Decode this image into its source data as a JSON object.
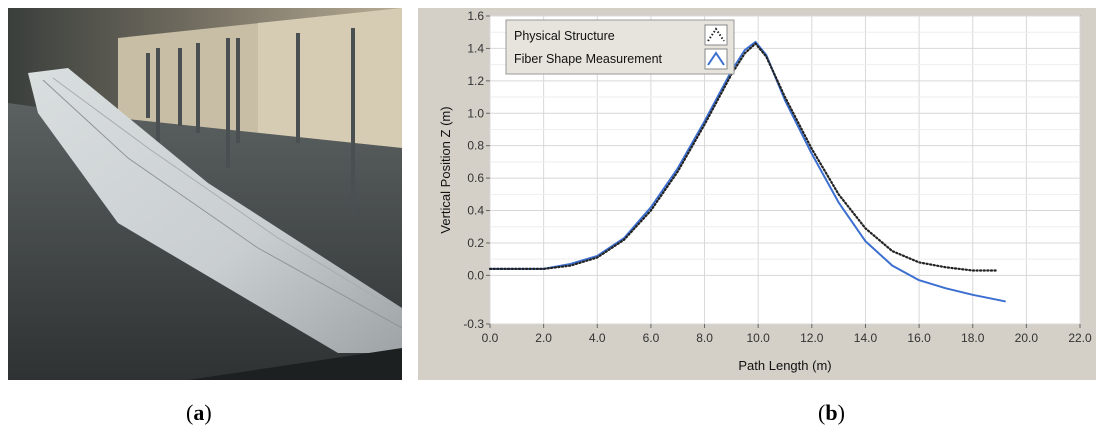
{
  "captions": {
    "a": "a",
    "b": "b"
  },
  "chart_data": {
    "type": "line",
    "title": "",
    "xlabel": "Path Length (m)",
    "ylabel": "Vertical Position Z (m)",
    "xlim": [
      0.0,
      22.0
    ],
    "ylim": [
      -0.3,
      1.6
    ],
    "xticks": [
      "0.0",
      "2.0",
      "4.0",
      "6.0",
      "8.0",
      "10.0",
      "12.0",
      "14.0",
      "16.0",
      "18.0",
      "20.0",
      "22.0"
    ],
    "yticks": [
      "-0.3",
      "0.0",
      "0.2",
      "0.4",
      "0.6",
      "0.8",
      "1.0",
      "1.2",
      "1.4",
      "1.6"
    ],
    "grid": true,
    "legend_position": "top-left",
    "series": [
      {
        "name": "Physical Structure",
        "color": "#222222",
        "style": "dotted",
        "x": [
          0.0,
          1.0,
          2.0,
          3.0,
          4.0,
          5.0,
          6.0,
          7.0,
          8.0,
          9.0,
          9.5,
          9.9,
          10.3,
          11.0,
          12.0,
          13.0,
          14.0,
          15.0,
          16.0,
          17.0,
          18.0,
          18.9
        ],
        "y": [
          0.04,
          0.04,
          0.04,
          0.06,
          0.11,
          0.22,
          0.4,
          0.64,
          0.93,
          1.24,
          1.37,
          1.43,
          1.35,
          1.1,
          0.78,
          0.5,
          0.29,
          0.15,
          0.08,
          0.05,
          0.03,
          0.03
        ]
      },
      {
        "name": "Fiber Shape Measurement",
        "color": "#3c6fd0",
        "style": "solid",
        "x": [
          0.0,
          1.0,
          2.0,
          3.0,
          4.0,
          5.0,
          6.0,
          7.0,
          8.0,
          9.0,
          9.5,
          9.9,
          10.3,
          11.0,
          12.0,
          13.0,
          14.0,
          15.0,
          16.0,
          17.0,
          18.0,
          19.2
        ],
        "y": [
          0.04,
          0.04,
          0.04,
          0.07,
          0.12,
          0.23,
          0.42,
          0.66,
          0.95,
          1.26,
          1.39,
          1.44,
          1.36,
          1.08,
          0.75,
          0.45,
          0.21,
          0.06,
          -0.03,
          -0.08,
          -0.12,
          -0.16
        ]
      }
    ]
  }
}
